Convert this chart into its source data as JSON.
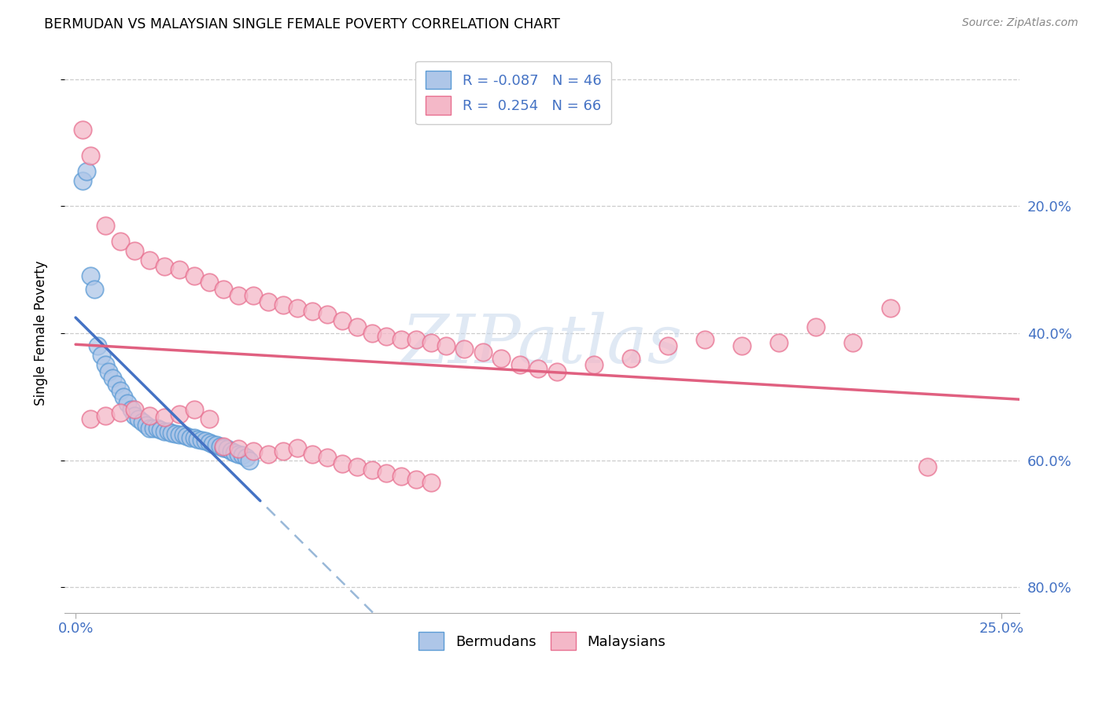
{
  "title": "BERMUDAN VS MALAYSIAN SINGLE FEMALE POVERTY CORRELATION CHART",
  "source": "Source: ZipAtlas.com",
  "ylabel": "Single Female Poverty",
  "watermark": "ZIPatlas",
  "xlim": [
    -0.003,
    0.255
  ],
  "ylim": [
    -0.04,
    0.84
  ],
  "yticks": [
    0.0,
    0.2,
    0.4,
    0.6,
    0.8
  ],
  "xticks": [
    0.0,
    0.25
  ],
  "xtick_labels": [
    "0.0%",
    "25.0%"
  ],
  "right_ytick_labels": [
    "80.0%",
    "60.0%",
    "40.0%",
    "20.0%",
    ""
  ],
  "bermuda_fill_color": "#aec6e8",
  "bermuda_edge_color": "#5b9bd5",
  "malaysia_fill_color": "#f4b8c8",
  "malaysia_edge_color": "#e87090",
  "bermuda_line_color": "#4472c4",
  "malaysia_line_color": "#e06080",
  "bermuda_dash_color": "#99b8d8",
  "legend_R_bermuda": "-0.087",
  "legend_N_bermuda": "46",
  "legend_R_malaysia": "0.254",
  "legend_N_malaysia": "66",
  "bermuda_x": [
    0.002,
    0.003,
    0.004,
    0.005,
    0.006,
    0.007,
    0.008,
    0.009,
    0.01,
    0.011,
    0.012,
    0.013,
    0.014,
    0.015,
    0.016,
    0.017,
    0.018,
    0.019,
    0.02,
    0.021,
    0.022,
    0.023,
    0.024,
    0.025,
    0.026,
    0.027,
    0.028,
    0.029,
    0.03,
    0.031,
    0.032,
    0.033,
    0.034,
    0.035,
    0.036,
    0.037,
    0.038,
    0.039,
    0.04,
    0.041,
    0.042,
    0.043,
    0.044,
    0.045,
    0.046,
    0.047
  ],
  "bermuda_y": [
    0.64,
    0.655,
    0.49,
    0.47,
    0.38,
    0.365,
    0.35,
    0.34,
    0.33,
    0.32,
    0.31,
    0.3,
    0.29,
    0.28,
    0.27,
    0.265,
    0.26,
    0.255,
    0.25,
    0.25,
    0.25,
    0.248,
    0.246,
    0.245,
    0.243,
    0.242,
    0.241,
    0.24,
    0.238,
    0.236,
    0.235,
    0.233,
    0.232,
    0.23,
    0.228,
    0.226,
    0.224,
    0.222,
    0.22,
    0.218,
    0.215,
    0.212,
    0.21,
    0.208,
    0.205,
    0.2
  ],
  "malaysia_x": [
    0.002,
    0.004,
    0.008,
    0.012,
    0.016,
    0.02,
    0.024,
    0.028,
    0.032,
    0.036,
    0.04,
    0.044,
    0.048,
    0.052,
    0.056,
    0.06,
    0.064,
    0.068,
    0.072,
    0.076,
    0.08,
    0.084,
    0.088,
    0.092,
    0.096,
    0.1,
    0.105,
    0.11,
    0.115,
    0.12,
    0.125,
    0.13,
    0.14,
    0.15,
    0.16,
    0.17,
    0.18,
    0.19,
    0.2,
    0.21,
    0.22,
    0.23,
    0.004,
    0.008,
    0.012,
    0.016,
    0.02,
    0.024,
    0.028,
    0.032,
    0.036,
    0.04,
    0.044,
    0.048,
    0.052,
    0.056,
    0.06,
    0.064,
    0.068,
    0.072,
    0.076,
    0.08,
    0.084,
    0.088,
    0.092,
    0.096
  ],
  "malaysia_y": [
    0.72,
    0.68,
    0.57,
    0.545,
    0.53,
    0.515,
    0.505,
    0.5,
    0.49,
    0.48,
    0.47,
    0.46,
    0.46,
    0.45,
    0.445,
    0.44,
    0.435,
    0.43,
    0.42,
    0.41,
    0.4,
    0.395,
    0.39,
    0.39,
    0.385,
    0.38,
    0.375,
    0.37,
    0.36,
    0.35,
    0.345,
    0.34,
    0.35,
    0.36,
    0.38,
    0.39,
    0.38,
    0.385,
    0.41,
    0.385,
    0.44,
    0.19,
    0.265,
    0.27,
    0.275,
    0.28,
    0.27,
    0.268,
    0.272,
    0.28,
    0.265,
    0.222,
    0.218,
    0.215,
    0.21,
    0.215,
    0.22,
    0.21,
    0.205,
    0.195,
    0.19,
    0.185,
    0.18,
    0.175,
    0.17,
    0.165
  ]
}
